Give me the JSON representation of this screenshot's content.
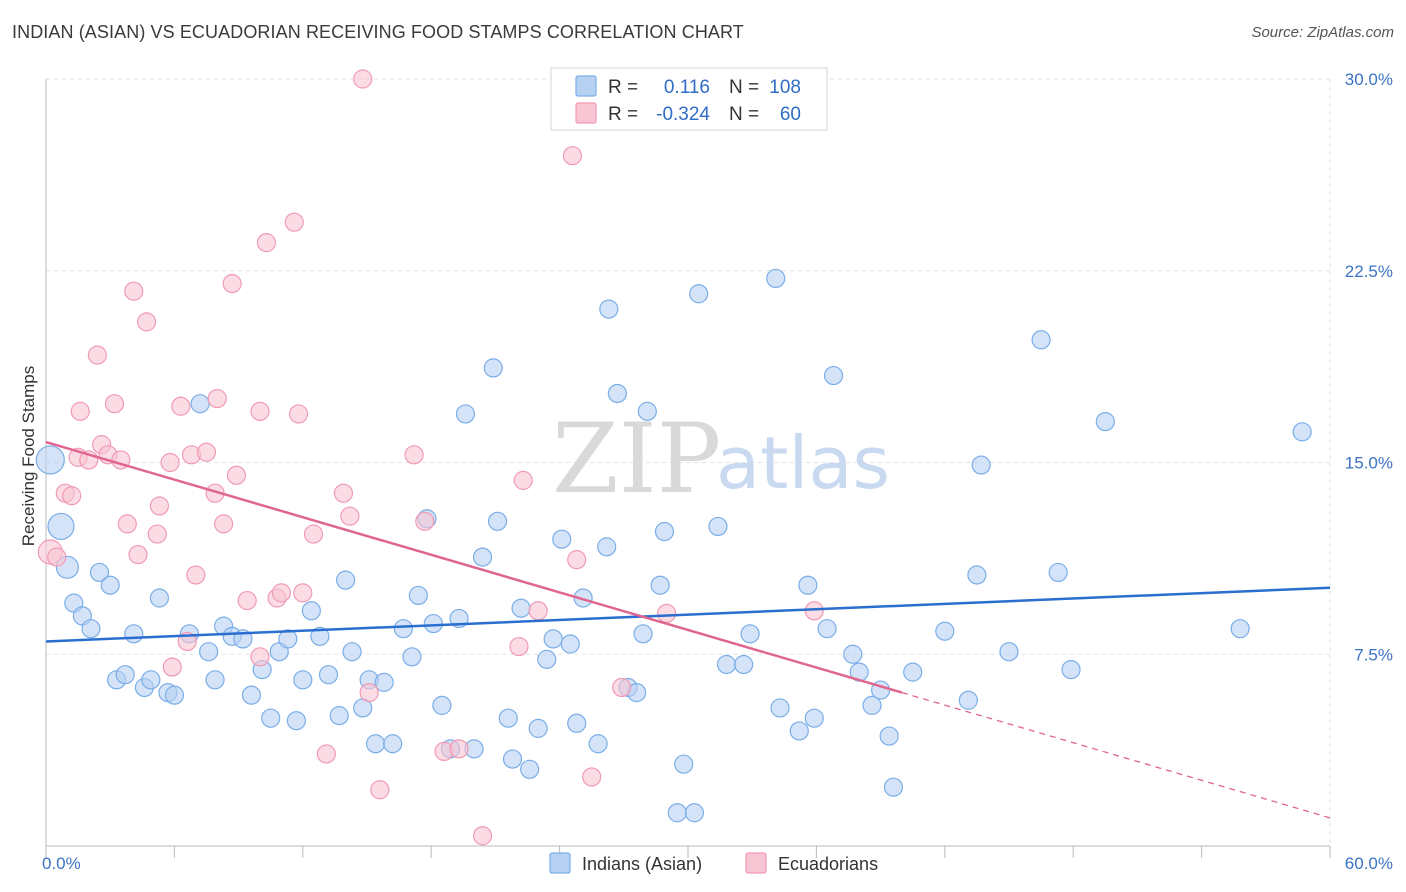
{
  "title": "INDIAN (ASIAN) VS ECUADORIAN RECEIVING FOOD STAMPS CORRELATION CHART",
  "source": "Source: ZipAtlas.com",
  "watermark": {
    "zip": "ZIP",
    "atlas": "atlas"
  },
  "legend": {
    "rows": [
      {
        "r_label": "R =",
        "r_value": "0.116",
        "n_label": "N =",
        "n_value": "108",
        "color": "#7aaee8",
        "fill": "#b7d1f3"
      },
      {
        "r_label": "R =",
        "r_value": "-0.324",
        "n_label": "N =",
        "n_value": "60",
        "color": "#f09ab4",
        "fill": "#f8c5d4"
      }
    ]
  },
  "chart_data": {
    "type": "scatter",
    "title": "INDIAN (ASIAN) VS ECUADORIAN RECEIVING FOOD STAMPS CORRELATION CHART",
    "xlabel": "",
    "ylabel": "Receiving Food Stamps",
    "xlim": [
      0,
      60
    ],
    "ylim": [
      0,
      30
    ],
    "x_ticks": [
      {
        "value": 0,
        "label": "0.0%"
      },
      {
        "value": 60,
        "label": "60.0%"
      }
    ],
    "y_ticks": [
      {
        "value": 7.5,
        "label": "7.5%"
      },
      {
        "value": 15,
        "label": "15.0%"
      },
      {
        "value": 22.5,
        "label": "22.5%"
      },
      {
        "value": 30,
        "label": "30.0%"
      }
    ],
    "grid": true,
    "legend_position": "bottom-center",
    "series": [
      {
        "name": "Indians (Asian)",
        "color": "#7aaee8",
        "fill": "#b7d1f3",
        "line_color": "#2a6fd0",
        "trend": {
          "x": [
            0,
            60
          ],
          "y": [
            8.0,
            10.1
          ]
        },
        "points": [
          [
            0.2,
            15.1
          ],
          [
            0.7,
            12.5
          ],
          [
            1.0,
            10.9
          ],
          [
            1.3,
            9.5
          ],
          [
            1.7,
            9.0
          ],
          [
            2.1,
            8.5
          ],
          [
            2.5,
            10.7
          ],
          [
            3.0,
            10.2
          ],
          [
            3.3,
            6.5
          ],
          [
            3.7,
            6.7
          ],
          [
            4.1,
            8.3
          ],
          [
            4.6,
            6.2
          ],
          [
            4.9,
            6.5
          ],
          [
            5.3,
            9.7
          ],
          [
            5.7,
            6.0
          ],
          [
            6.0,
            5.9
          ],
          [
            6.7,
            8.3
          ],
          [
            7.2,
            17.3
          ],
          [
            7.6,
            7.6
          ],
          [
            7.9,
            6.5
          ],
          [
            8.3,
            8.6
          ],
          [
            8.7,
            8.2
          ],
          [
            9.2,
            8.1
          ],
          [
            9.6,
            5.9
          ],
          [
            10.1,
            6.9
          ],
          [
            10.5,
            5.0
          ],
          [
            10.9,
            7.6
          ],
          [
            11.3,
            8.1
          ],
          [
            11.7,
            4.9
          ],
          [
            12.0,
            6.5
          ],
          [
            12.4,
            9.2
          ],
          [
            12.8,
            8.2
          ],
          [
            13.2,
            6.7
          ],
          [
            13.7,
            5.1
          ],
          [
            14.0,
            10.4
          ],
          [
            14.3,
            7.6
          ],
          [
            14.8,
            5.4
          ],
          [
            15.1,
            6.5
          ],
          [
            15.4,
            4.0
          ],
          [
            15.8,
            6.4
          ],
          [
            16.2,
            4.0
          ],
          [
            16.7,
            8.5
          ],
          [
            17.1,
            7.4
          ],
          [
            17.4,
            9.8
          ],
          [
            17.8,
            12.8
          ],
          [
            18.1,
            8.7
          ],
          [
            18.5,
            5.5
          ],
          [
            18.9,
            3.8
          ],
          [
            19.3,
            8.9
          ],
          [
            19.6,
            16.9
          ],
          [
            20.0,
            3.8
          ],
          [
            20.4,
            11.3
          ],
          [
            20.9,
            18.7
          ],
          [
            21.1,
            12.7
          ],
          [
            21.6,
            5.0
          ],
          [
            21.8,
            3.4
          ],
          [
            22.2,
            9.3
          ],
          [
            22.6,
            3.0
          ],
          [
            23.0,
            4.6
          ],
          [
            23.4,
            7.3
          ],
          [
            23.7,
            8.1
          ],
          [
            24.1,
            12.0
          ],
          [
            24.5,
            7.9
          ],
          [
            24.8,
            4.8
          ],
          [
            25.1,
            9.7
          ],
          [
            25.8,
            4.0
          ],
          [
            26.2,
            11.7
          ],
          [
            26.3,
            21.0
          ],
          [
            26.7,
            17.7
          ],
          [
            27.2,
            6.2
          ],
          [
            27.6,
            6.0
          ],
          [
            27.9,
            8.3
          ],
          [
            28.1,
            17.0
          ],
          [
            28.7,
            10.2
          ],
          [
            28.9,
            12.3
          ],
          [
            29.5,
            1.3
          ],
          [
            29.8,
            3.2
          ],
          [
            30.3,
            1.3
          ],
          [
            30.5,
            21.6
          ],
          [
            31.4,
            12.5
          ],
          [
            31.8,
            7.1
          ],
          [
            32.6,
            7.1
          ],
          [
            32.9,
            8.3
          ],
          [
            34.1,
            22.2
          ],
          [
            34.3,
            5.4
          ],
          [
            35.2,
            4.5
          ],
          [
            35.6,
            10.2
          ],
          [
            35.9,
            5.0
          ],
          [
            36.5,
            8.5
          ],
          [
            36.8,
            18.4
          ],
          [
            37.7,
            7.5
          ],
          [
            38.0,
            6.8
          ],
          [
            38.6,
            5.5
          ],
          [
            39.0,
            6.1
          ],
          [
            39.4,
            4.3
          ],
          [
            39.6,
            2.3
          ],
          [
            40.5,
            6.8
          ],
          [
            42.0,
            8.4
          ],
          [
            43.1,
            5.7
          ],
          [
            43.5,
            10.6
          ],
          [
            43.7,
            14.9
          ],
          [
            45.0,
            7.6
          ],
          [
            46.5,
            19.8
          ],
          [
            47.3,
            10.7
          ],
          [
            47.9,
            6.9
          ],
          [
            49.5,
            16.6
          ],
          [
            55.8,
            8.5
          ],
          [
            58.7,
            16.2
          ]
        ]
      },
      {
        "name": "Ecuadorians",
        "color": "#f09ab4",
        "fill": "#f8c5d4",
        "line_color": "#e06690",
        "trend": {
          "x": [
            0,
            40
          ],
          "y": [
            15.8,
            6.0
          ]
        },
        "trend_dashed": {
          "x": [
            40,
            60
          ],
          "y": [
            6.0,
            1.1
          ]
        },
        "points": [
          [
            0.2,
            11.5
          ],
          [
            0.5,
            11.3
          ],
          [
            0.9,
            13.8
          ],
          [
            1.2,
            13.7
          ],
          [
            1.5,
            15.2
          ],
          [
            1.6,
            17.0
          ],
          [
            2.0,
            15.1
          ],
          [
            2.4,
            19.2
          ],
          [
            2.6,
            15.7
          ],
          [
            2.9,
            15.3
          ],
          [
            3.2,
            17.3
          ],
          [
            3.5,
            15.1
          ],
          [
            3.8,
            12.6
          ],
          [
            4.3,
            11.4
          ],
          [
            4.1,
            21.7
          ],
          [
            4.7,
            20.5
          ],
          [
            5.2,
            12.2
          ],
          [
            5.3,
            13.3
          ],
          [
            5.8,
            15.0
          ],
          [
            5.9,
            7.0
          ],
          [
            6.3,
            17.2
          ],
          [
            6.6,
            8.0
          ],
          [
            6.8,
            15.3
          ],
          [
            7.0,
            10.6
          ],
          [
            7.5,
            15.4
          ],
          [
            7.9,
            13.8
          ],
          [
            8.0,
            17.5
          ],
          [
            8.3,
            12.6
          ],
          [
            8.7,
            22.0
          ],
          [
            8.9,
            14.5
          ],
          [
            9.4,
            9.6
          ],
          [
            10.0,
            7.4
          ],
          [
            10.0,
            17.0
          ],
          [
            10.3,
            23.6
          ],
          [
            10.8,
            9.7
          ],
          [
            11.0,
            9.9
          ],
          [
            11.6,
            24.4
          ],
          [
            11.8,
            16.9
          ],
          [
            12.0,
            9.9
          ],
          [
            12.5,
            12.2
          ],
          [
            13.1,
            3.6
          ],
          [
            13.9,
            13.8
          ],
          [
            14.2,
            12.9
          ],
          [
            14.8,
            30.0
          ],
          [
            15.1,
            6.0
          ],
          [
            15.6,
            2.2
          ],
          [
            17.2,
            15.3
          ],
          [
            17.7,
            12.7
          ],
          [
            18.6,
            3.7
          ],
          [
            19.3,
            3.8
          ],
          [
            20.4,
            0.4
          ],
          [
            22.1,
            7.8
          ],
          [
            22.3,
            14.3
          ],
          [
            23.0,
            9.2
          ],
          [
            24.6,
            27.0
          ],
          [
            24.8,
            11.2
          ],
          [
            25.5,
            2.7
          ],
          [
            26.9,
            6.2
          ],
          [
            29.0,
            9.1
          ],
          [
            35.9,
            9.2
          ]
        ]
      }
    ]
  },
  "bottom_legend": [
    {
      "label": "Indians (Asian)"
    },
    {
      "label": "Ecuadorians"
    }
  ]
}
